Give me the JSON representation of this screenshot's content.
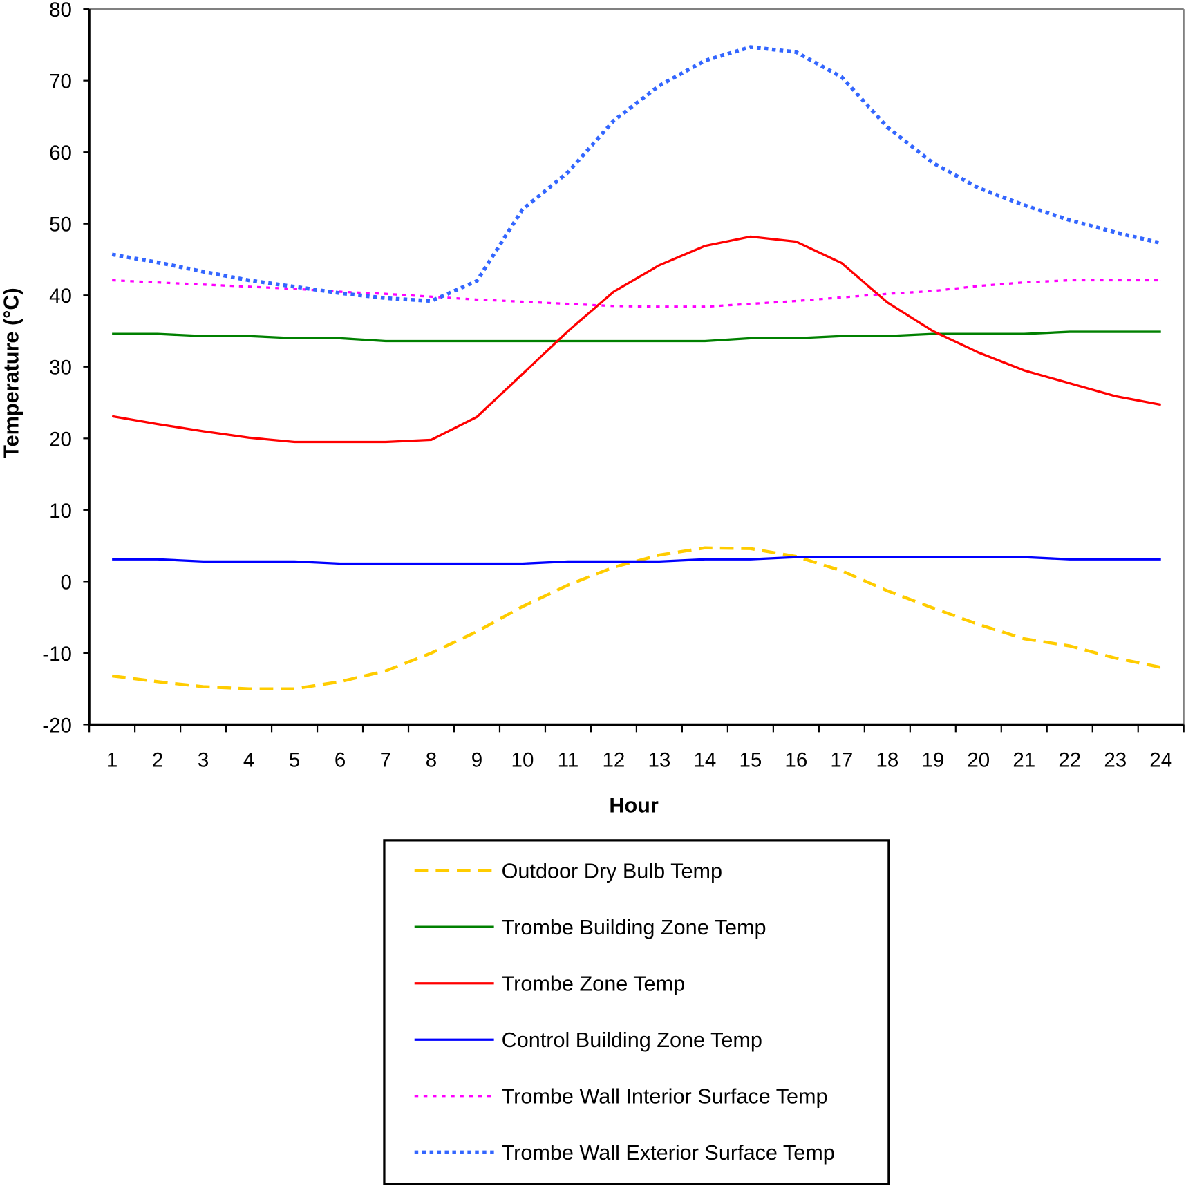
{
  "chart_data": {
    "type": "line",
    "title": "",
    "xlabel": "Hour",
    "ylabel": "Temperature (°C)",
    "ylim": [
      -20,
      80
    ],
    "yticks": [
      "80",
      "70",
      "60",
      "50",
      "40",
      "30",
      "20",
      "10",
      "0",
      "-10",
      "-20"
    ],
    "x": [
      1,
      2,
      3,
      4,
      5,
      6,
      7,
      8,
      9,
      10,
      11,
      12,
      13,
      14,
      15,
      16,
      17,
      18,
      19,
      20,
      21,
      22,
      23,
      24
    ],
    "grid": false,
    "legend_position": "bottom",
    "series": [
      {
        "name": "Outdoor Dry Bulb Temp",
        "color": "#FFCC00",
        "dash": "dashed",
        "values": [
          -13.2,
          -14,
          -14.7,
          -15,
          -15,
          -14,
          -12.5,
          -10,
          -7,
          -3.5,
          -0.5,
          2,
          3.7,
          4.7,
          4.6,
          3.5,
          1.5,
          -1.3,
          -3.7,
          -6,
          -8,
          -9,
          -10.7,
          -12
        ]
      },
      {
        "name": "Trombe Building Zone Temp",
        "color": "#008000",
        "dash": "solid",
        "values": [
          34.6,
          34.6,
          34.3,
          34.3,
          34,
          34,
          33.6,
          33.6,
          33.6,
          33.6,
          33.6,
          33.6,
          33.6,
          33.6,
          34,
          34,
          34.3,
          34.3,
          34.6,
          34.6,
          34.6,
          34.9,
          34.9,
          34.9
        ]
      },
      {
        "name": "Trombe Zone Temp",
        "color": "#FF0000",
        "dash": "solid",
        "values": [
          23.1,
          22,
          21,
          20.1,
          19.5,
          19.5,
          19.5,
          19.8,
          23,
          29,
          35,
          40.5,
          44.2,
          46.9,
          48.2,
          47.5,
          44.5,
          39,
          35,
          32,
          29.5,
          27.7,
          25.9,
          24.7
        ]
      },
      {
        "name": "Control Building Zone Temp",
        "color": "#0000FF",
        "dash": "solid",
        "values": [
          3.1,
          3.1,
          2.8,
          2.8,
          2.8,
          2.5,
          2.5,
          2.5,
          2.5,
          2.5,
          2.8,
          2.8,
          2.8,
          3.1,
          3.1,
          3.4,
          3.4,
          3.4,
          3.4,
          3.4,
          3.4,
          3.1,
          3.1,
          3.1
        ]
      },
      {
        "name": "Trombe Wall Interior Surface Temp",
        "color": "#FF00FF",
        "dash": "dotted",
        "values": [
          42.1,
          41.8,
          41.5,
          41.2,
          40.9,
          40.5,
          40.2,
          39.8,
          39.4,
          39.1,
          38.8,
          38.5,
          38.4,
          38.4,
          38.8,
          39.2,
          39.7,
          40.2,
          40.6,
          41.3,
          41.8,
          42.1,
          42.1,
          42.1
        ]
      },
      {
        "name": "Trombe Wall Exterior Surface Temp",
        "color": "#3366FF",
        "dash": "dotted-bold",
        "values": [
          45.7,
          44.6,
          43.3,
          42.1,
          41.2,
          40.3,
          39.6,
          39.2,
          42,
          52,
          57.2,
          64.4,
          69.3,
          72.8,
          74.7,
          74,
          70.5,
          63.5,
          58.5,
          55,
          52.6,
          50.5,
          48.8,
          47.3
        ]
      }
    ]
  }
}
